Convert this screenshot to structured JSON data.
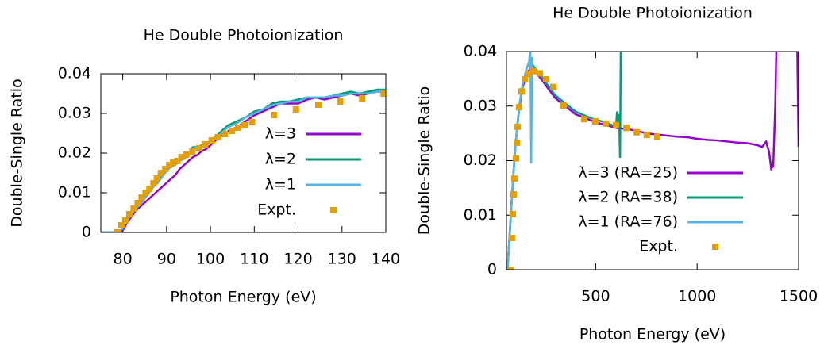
{
  "chart_data": [
    {
      "type": "line",
      "title": "He Double Photoionization",
      "xlabel": "Photon Energy (eV)",
      "ylabel": "Double-Single Ratio",
      "xlim": [
        75,
        140
      ],
      "ylim": [
        0,
        0.04
      ],
      "xticks": [
        80,
        90,
        100,
        110,
        120,
        130,
        140
      ],
      "yticks": [
        0,
        0.01,
        0.02,
        0.03,
        0.04
      ],
      "legend": "center right",
      "series": [
        {
          "name": "λ=3",
          "color": "#9400d3",
          "mode": "lines",
          "x": [
            75,
            77,
            79,
            80,
            81,
            82,
            83,
            84,
            85,
            86,
            87,
            88,
            89,
            90,
            91,
            92,
            93,
            94,
            95,
            96,
            97,
            98,
            99,
            100,
            102,
            104,
            106,
            108,
            110,
            112,
            114,
            116,
            118,
            120,
            122,
            124,
            126,
            128,
            130,
            132,
            134,
            136,
            138,
            140
          ],
          "values": [
            0,
            0,
            0,
            0.0005,
            0.0025,
            0.004,
            0.0055,
            0.0065,
            0.0075,
            0.0085,
            0.0095,
            0.0105,
            0.0115,
            0.0125,
            0.0135,
            0.0145,
            0.016,
            0.017,
            0.018,
            0.019,
            0.0195,
            0.0205,
            0.021,
            0.022,
            0.024,
            0.0255,
            0.0265,
            0.028,
            0.0295,
            0.0305,
            0.0315,
            0.0325,
            0.0325,
            0.0325,
            0.0335,
            0.034,
            0.0335,
            0.034,
            0.0345,
            0.035,
            0.0345,
            0.035,
            0.0355,
            0.0355
          ]
        },
        {
          "name": "λ=2",
          "color": "#009e73",
          "mode": "lines",
          "x": [
            75,
            77,
            79,
            80,
            81,
            82,
            83,
            84,
            85,
            86,
            87,
            88,
            89,
            90,
            91,
            92,
            93,
            94,
            95,
            96,
            97,
            98,
            99,
            100,
            102,
            104,
            106,
            108,
            110,
            112,
            114,
            116,
            118,
            120,
            122,
            124,
            126,
            128,
            130,
            132,
            134,
            136,
            138,
            140
          ],
          "values": [
            0,
            0,
            0,
            0.001,
            0.003,
            0.0045,
            0.006,
            0.0075,
            0.009,
            0.0105,
            0.012,
            0.013,
            0.0145,
            0.016,
            0.017,
            0.0175,
            0.0185,
            0.019,
            0.02,
            0.0215,
            0.0215,
            0.022,
            0.0225,
            0.023,
            0.025,
            0.027,
            0.028,
            0.029,
            0.0305,
            0.031,
            0.0325,
            0.033,
            0.033,
            0.0335,
            0.034,
            0.034,
            0.034,
            0.0345,
            0.035,
            0.0355,
            0.035,
            0.0355,
            0.036,
            0.036
          ]
        },
        {
          "name": "λ=1",
          "color": "#56b4e9",
          "mode": "lines",
          "x": [
            75,
            77,
            79,
            80,
            81,
            82,
            83,
            84,
            85,
            86,
            87,
            88,
            89,
            90,
            91,
            92,
            93,
            94,
            95,
            96,
            97,
            98,
            99,
            100,
            102,
            104,
            106,
            108,
            110,
            112,
            114,
            116,
            118,
            120,
            122,
            124,
            126,
            128,
            130,
            132,
            134,
            136,
            138,
            140
          ],
          "values": [
            0,
            0,
            0,
            0.001,
            0.003,
            0.0045,
            0.006,
            0.007,
            0.0085,
            0.01,
            0.0115,
            0.0125,
            0.014,
            0.0155,
            0.0165,
            0.017,
            0.018,
            0.0185,
            0.0195,
            0.021,
            0.0215,
            0.0215,
            0.022,
            0.023,
            0.0245,
            0.0265,
            0.0275,
            0.029,
            0.03,
            0.031,
            0.032,
            0.0325,
            0.033,
            0.033,
            0.034,
            0.034,
            0.034,
            0.0345,
            0.0345,
            0.035,
            0.035,
            0.035,
            0.0355,
            0.0355
          ]
        },
        {
          "name": "Expt.",
          "color": "#e69f00",
          "mode": "markers",
          "x": [
            78.8,
            79.7,
            80.6,
            81.5,
            82.5,
            83.4,
            84.3,
            85.2,
            86.1,
            87,
            87.8,
            88.7,
            89.7,
            90.6,
            91.5,
            92.5,
            93.4,
            94.5,
            95.9,
            97.4,
            98.8,
            100.3,
            101.7,
            103.3,
            104.9,
            106.3,
            107.8,
            109.5,
            114.5,
            119.5,
            124.6,
            129.6,
            134.6,
            139.5
          ],
          "values": [
            0,
            0.0018,
            0.003,
            0.0046,
            0.006,
            0.0074,
            0.0088,
            0.01,
            0.011,
            0.0124,
            0.0136,
            0.015,
            0.016,
            0.017,
            0.0176,
            0.018,
            0.019,
            0.0196,
            0.0204,
            0.0212,
            0.0222,
            0.0232,
            0.024,
            0.0248,
            0.0256,
            0.0264,
            0.027,
            0.0278,
            0.0296,
            0.031,
            0.0322,
            0.033,
            0.0338,
            0.035
          ]
        }
      ]
    },
    {
      "type": "line",
      "title": "He Double Photoionization",
      "xlabel": "Photon Energy (eV)",
      "ylabel": "Double-Single Ratio",
      "xlim": [
        60,
        1500
      ],
      "ylim": [
        0,
        0.04
      ],
      "xticks": [
        500,
        1000,
        1500
      ],
      "yticks": [
        0,
        0.01,
        0.02,
        0.03,
        0.04
      ],
      "legend": "bottom right",
      "series": [
        {
          "name": "λ=3 (RA=25)",
          "color": "#9400d3",
          "mode": "lines",
          "x": [
            65,
            75,
            85,
            95,
            105,
            115,
            125,
            140,
            160,
            180,
            200,
            250,
            300,
            350,
            400,
            450,
            500,
            550,
            600,
            650,
            700,
            750,
            800,
            850,
            900,
            950,
            1000,
            1050,
            1100,
            1150,
            1200,
            1250,
            1300,
            1320,
            1340,
            1355,
            1365,
            1375,
            1385,
            1395,
            1490,
            1500
          ],
          "values": [
            0,
            0.006,
            0.012,
            0.018,
            0.023,
            0.027,
            0.03,
            0.0335,
            0.036,
            0.037,
            0.0365,
            0.034,
            0.0315,
            0.03,
            0.0285,
            0.0278,
            0.027,
            0.0265,
            0.026,
            0.0258,
            0.0255,
            0.025,
            0.0248,
            0.0246,
            0.0244,
            0.0243,
            0.024,
            0.0238,
            0.0237,
            0.0235,
            0.0233,
            0.0232,
            0.0228,
            0.0225,
            0.0235,
            0.0215,
            0.0185,
            0.019,
            0.03,
            0.05,
            0.05,
            0.0225
          ]
        },
        {
          "name": "λ=2 (RA=38)",
          "color": "#009e73",
          "mode": "lines",
          "x": [
            65,
            75,
            85,
            95,
            105,
            115,
            125,
            140,
            160,
            180,
            190,
            200,
            250,
            300,
            350,
            400,
            450,
            500,
            550,
            580,
            600,
            605,
            610,
            615,
            620,
            625
          ],
          "values": [
            0,
            0.006,
            0.012,
            0.018,
            0.023,
            0.027,
            0.0305,
            0.034,
            0.037,
            0.0385,
            0.0375,
            0.037,
            0.0345,
            0.032,
            0.0305,
            0.029,
            0.0282,
            0.0275,
            0.027,
            0.0265,
            0.0263,
            0.029,
            0.0265,
            0.0285,
            0.0205,
            0.05
          ]
        },
        {
          "name": "λ=1 (RA=76)",
          "color": "#56b4e9",
          "mode": "lines",
          "x": [
            65,
            75,
            85,
            95,
            105,
            115,
            125,
            140,
            160,
            170,
            178,
            182,
            186,
            190,
            195
          ],
          "values": [
            0,
            0.006,
            0.012,
            0.018,
            0.023,
            0.027,
            0.0305,
            0.034,
            0.037,
            0.038,
            0.04,
            0.0195,
            0.039,
            0.037,
            0.0365
          ]
        },
        {
          "name": "Expt.",
          "color": "#e69f00",
          "mode": "markers",
          "x": [
            80,
            87,
            91,
            95,
            99,
            107,
            111,
            115,
            122,
            134,
            150,
            170,
            193,
            224,
            255,
            291,
            342,
            443,
            498,
            549,
            600,
            651,
            702,
            752,
            803
          ],
          "values": [
            0,
            0.0058,
            0.0102,
            0.0138,
            0.0167,
            0.0204,
            0.0233,
            0.0262,
            0.0298,
            0.0327,
            0.0349,
            0.0359,
            0.0364,
            0.036,
            0.0349,
            0.0335,
            0.0301,
            0.0276,
            0.0272,
            0.0268,
            0.0265,
            0.026,
            0.0252,
            0.0247,
            0.0244
          ]
        }
      ]
    }
  ]
}
